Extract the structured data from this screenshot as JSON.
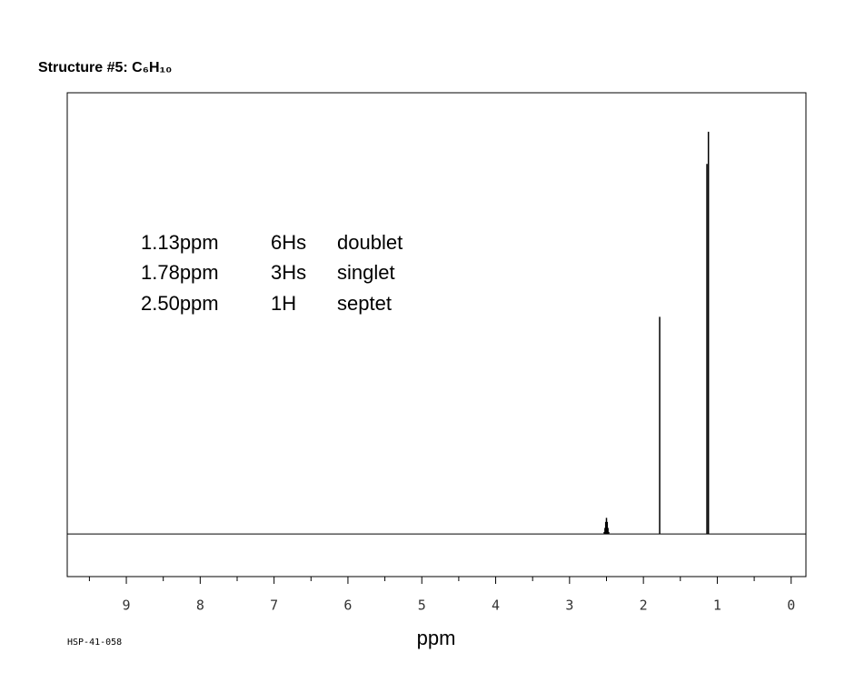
{
  "chart_data": {
    "type": "spectrum",
    "title": "Structure #5: C₆H₁₀",
    "annotations": [
      [
        "1.13ppm",
        "6Hs",
        "doublet"
      ],
      [
        "1.78ppm",
        "3Hs",
        "singlet"
      ],
      [
        "2.50ppm",
        "1H",
        "septet"
      ]
    ],
    "xlabel": "ppm",
    "footnote": "HSP-41-058",
    "x": [
      2.47,
      2.48,
      2.49,
      2.5,
      2.51,
      2.52,
      2.53,
      1.78,
      1.14,
      1.12
    ],
    "values": [
      0.5,
      1.5,
      3,
      4,
      3,
      1.5,
      0.5,
      54,
      92,
      100
    ],
    "color": "#000000",
    "xlim": [
      9.8,
      -0.2
    ],
    "xticks": [
      9,
      8,
      7,
      6,
      5,
      4,
      3,
      2,
      1,
      0
    ],
    "xminor_ticks": [
      9.5,
      8.5,
      7.5,
      6.5,
      5.5,
      4.5,
      3.5,
      2.5,
      1.5,
      0.5
    ],
    "ylim": [
      -10.6,
      109.7
    ]
  }
}
